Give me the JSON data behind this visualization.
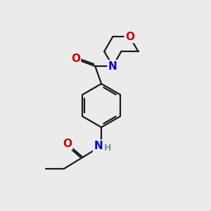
{
  "bg_color": "#ebebeb",
  "bond_color": "#1a1a1a",
  "bond_width": 1.6,
  "dbo": 0.07,
  "atom_colors": {
    "O": "#cc0000",
    "N": "#0000cc",
    "H": "#5f9ea0",
    "C": "#1a1a1a"
  },
  "font_size_atom": 11,
  "font_size_H": 9
}
